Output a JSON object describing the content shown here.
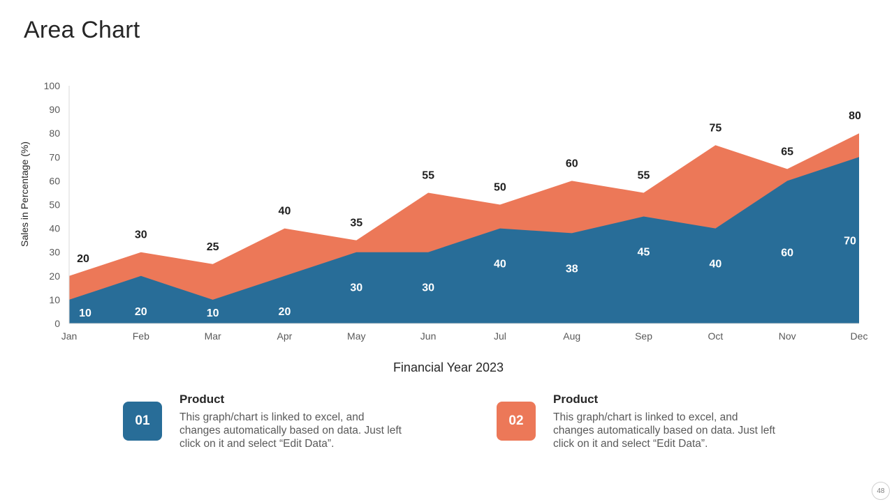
{
  "slide": {
    "title": "Area Chart",
    "page_number": "48"
  },
  "chart_data": {
    "type": "area",
    "categories": [
      "Jan",
      "Feb",
      "Mar",
      "Apr",
      "May",
      "Jun",
      "Jul",
      "Aug",
      "Sep",
      "Oct",
      "Nov",
      "Dec"
    ],
    "series": [
      {
        "name": "Product 01",
        "values": [
          10,
          20,
          10,
          20,
          30,
          30,
          40,
          38,
          45,
          40,
          60,
          70
        ],
        "color": "#286d98"
      },
      {
        "name": "Product 02",
        "values": [
          20,
          30,
          25,
          40,
          35,
          55,
          50,
          60,
          55,
          75,
          65,
          80
        ],
        "color": "#ec7858"
      }
    ],
    "xlabel": "Financial Year 2023",
    "ylabel": "Sales in Percentage (%)",
    "ylim": [
      0,
      100
    ],
    "yticks": [
      0,
      10,
      20,
      30,
      40,
      50,
      60,
      70,
      80,
      90,
      100
    ],
    "stacked": false,
    "grid": false
  },
  "legend": [
    {
      "badge": "01",
      "heading": "Product",
      "text": "This graph/chart is linked to excel, and changes automatically based on data. Just left click on it and select “Edit Data”.",
      "color": "#286d98"
    },
    {
      "badge": "02",
      "heading": "Product",
      "text": "This graph/chart is linked to excel, and changes automatically based on data. Just left click on it and select “Edit Data”.",
      "color": "#ec7858"
    }
  ]
}
